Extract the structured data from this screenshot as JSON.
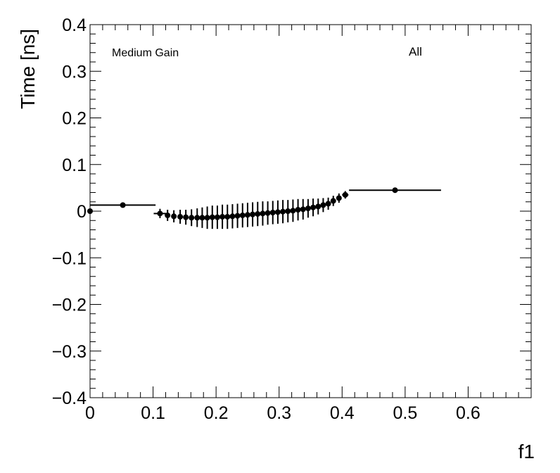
{
  "chart_data": {
    "type": "scatter",
    "xlabel": "f1",
    "ylabel": "Time [ns]",
    "annotations": [
      "Medium Gain",
      "All"
    ],
    "xlim": [
      0,
      0.7
    ],
    "ylim": [
      -0.4,
      0.4
    ],
    "x_ticks": [
      "0",
      "0.1",
      "0.2",
      "0.3",
      "0.4",
      "0.5",
      "0.6"
    ],
    "y_ticks": [
      "−0.4",
      "−0.3",
      "−0.2",
      "−0.1",
      "0",
      "0.1",
      "0.2",
      "0.3",
      "0.4"
    ],
    "grid": false,
    "series": [
      {
        "points": [
          {
            "x": 0.0,
            "y": 0.0,
            "xerr": 0.0,
            "yerr": 0.0
          },
          {
            "x": 0.052,
            "y": 0.013,
            "xerr": 0.052,
            "yerr": 0.005
          },
          {
            "x": 0.111,
            "y": -0.005,
            "xerr": 0.01,
            "yerr": 0.01
          },
          {
            "x": 0.123,
            "y": -0.009,
            "xerr": 0.0,
            "yerr": 0.012
          },
          {
            "x": 0.133,
            "y": -0.011,
            "xerr": 0.0,
            "yerr": 0.013
          },
          {
            "x": 0.143,
            "y": -0.012,
            "xerr": 0.0,
            "yerr": 0.015
          },
          {
            "x": 0.152,
            "y": -0.013,
            "xerr": 0.0,
            "yerr": 0.016
          },
          {
            "x": 0.161,
            "y": -0.014,
            "xerr": 0.0,
            "yerr": 0.018
          },
          {
            "x": 0.17,
            "y": -0.014,
            "xerr": 0.0,
            "yerr": 0.02
          },
          {
            "x": 0.178,
            "y": -0.014,
            "xerr": 0.0,
            "yerr": 0.022
          },
          {
            "x": 0.186,
            "y": -0.014,
            "xerr": 0.0,
            "yerr": 0.024
          },
          {
            "x": 0.194,
            "y": -0.013,
            "xerr": 0.0,
            "yerr": 0.025
          },
          {
            "x": 0.202,
            "y": -0.013,
            "xerr": 0.0,
            "yerr": 0.025
          },
          {
            "x": 0.21,
            "y": -0.012,
            "xerr": 0.0,
            "yerr": 0.026
          },
          {
            "x": 0.218,
            "y": -0.012,
            "xerr": 0.0,
            "yerr": 0.026
          },
          {
            "x": 0.226,
            "y": -0.011,
            "xerr": 0.0,
            "yerr": 0.026
          },
          {
            "x": 0.234,
            "y": -0.01,
            "xerr": 0.0,
            "yerr": 0.026
          },
          {
            "x": 0.242,
            "y": -0.009,
            "xerr": 0.0,
            "yerr": 0.026
          },
          {
            "x": 0.25,
            "y": -0.008,
            "xerr": 0.0,
            "yerr": 0.026
          },
          {
            "x": 0.258,
            "y": -0.007,
            "xerr": 0.0,
            "yerr": 0.026
          },
          {
            "x": 0.266,
            "y": -0.006,
            "xerr": 0.0,
            "yerr": 0.026
          },
          {
            "x": 0.274,
            "y": -0.005,
            "xerr": 0.0,
            "yerr": 0.026
          },
          {
            "x": 0.282,
            "y": -0.004,
            "xerr": 0.0,
            "yerr": 0.025
          },
          {
            "x": 0.29,
            "y": -0.003,
            "xerr": 0.0,
            "yerr": 0.025
          },
          {
            "x": 0.298,
            "y": -0.002,
            "xerr": 0.0,
            "yerr": 0.025
          },
          {
            "x": 0.306,
            "y": -0.001,
            "xerr": 0.0,
            "yerr": 0.025
          },
          {
            "x": 0.314,
            "y": 0.0,
            "xerr": 0.0,
            "yerr": 0.024
          },
          {
            "x": 0.322,
            "y": 0.001,
            "xerr": 0.0,
            "yerr": 0.024
          },
          {
            "x": 0.33,
            "y": 0.003,
            "xerr": 0.0,
            "yerr": 0.023
          },
          {
            "x": 0.338,
            "y": 0.004,
            "xerr": 0.0,
            "yerr": 0.022
          },
          {
            "x": 0.346,
            "y": 0.006,
            "xerr": 0.0,
            "yerr": 0.02
          },
          {
            "x": 0.354,
            "y": 0.008,
            "xerr": 0.0,
            "yerr": 0.019
          },
          {
            "x": 0.362,
            "y": 0.01,
            "xerr": 0.0,
            "yerr": 0.017
          },
          {
            "x": 0.37,
            "y": 0.013,
            "xerr": 0.0,
            "yerr": 0.015
          },
          {
            "x": 0.378,
            "y": 0.016,
            "xerr": 0.0,
            "yerr": 0.013
          },
          {
            "x": 0.386,
            "y": 0.022,
            "xerr": 0.0,
            "yerr": 0.011
          },
          {
            "x": 0.395,
            "y": 0.028,
            "xerr": 0.0,
            "yerr": 0.01
          },
          {
            "x": 0.405,
            "y": 0.035,
            "xerr": 0.005,
            "yerr": 0.008
          },
          {
            "x": 0.484,
            "y": 0.045,
            "xerr": 0.073,
            "yerr": 0.004
          }
        ]
      }
    ]
  }
}
